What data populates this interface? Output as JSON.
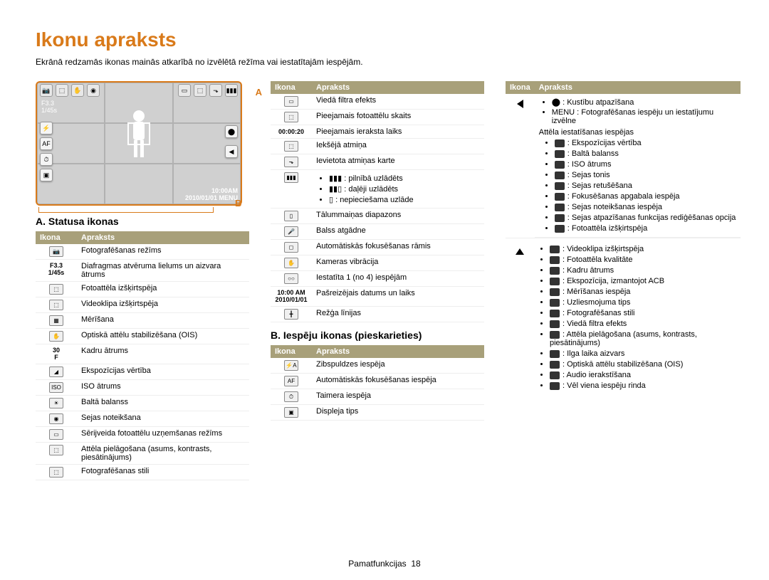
{
  "title": "Ikonu apraksts",
  "subtitle": "Ekrānā redzamās ikonas mainās atkarībā no izvēlētā režīma vai iestatītajām iespējām.",
  "preview": {
    "f_value": "F3.3",
    "shutter": "1/45s",
    "time": "10:00AM",
    "date": "2010/01/01",
    "menu": "MENU",
    "labelA": "A",
    "labelB": "B"
  },
  "sectionA_title": "A. Statusa ikonas",
  "sectionB_title": "B. Iespēju ikonas (pieskarieties)",
  "headers": {
    "icon": "Ikona",
    "desc": "Apraksts"
  },
  "tableA": [
    {
      "ic": "📷",
      "desc": "Fotografēšanas režīms"
    },
    {
      "ic": "F3.3\n1/45s",
      "txt": true,
      "desc": "Diafragmas atvēruma lielums un aizvara ātrums"
    },
    {
      "ic": "⬚",
      "desc": "Fotoattēla izšķirtspēja"
    },
    {
      "ic": "⬚",
      "desc": "Videoklipa izšķirtspēja"
    },
    {
      "ic": "▦",
      "desc": "Mērīšana"
    },
    {
      "ic": "✋",
      "desc": "Optiskā attēlu stabilizēšana (OIS)"
    },
    {
      "ic": "30\nF",
      "txt": true,
      "desc": "Kadru ātrums"
    },
    {
      "ic": "◢",
      "desc": "Ekspozīcijas vērtība"
    },
    {
      "ic": "ISO",
      "desc": "ISO ātrums"
    },
    {
      "ic": "☀",
      "desc": "Baltā balanss"
    },
    {
      "ic": "◉",
      "desc": "Sejas noteikšana"
    },
    {
      "ic": "▭",
      "desc": "Sērijveida fotoattēlu uzņemšanas režīms"
    },
    {
      "ic": "⬚",
      "desc": "Attēla pielāgošana (asums, kontrasts, piesātinājums)"
    },
    {
      "ic": "⬚",
      "desc": "Fotografēšanas stili"
    }
  ],
  "tableA2": [
    {
      "ic": "▭",
      "desc": "Viedā filtra efekts"
    },
    {
      "ic": "⬚",
      "desc": "Pieejamais fotoattēlu skaits"
    },
    {
      "ic": "00:00:20",
      "txt": true,
      "desc": "Pieejamais ieraksta laiks"
    },
    {
      "ic": "⬚",
      "desc": "Iekšējā atmiņa"
    },
    {
      "ic": "⬎",
      "desc": "Ievietota atmiņas karte"
    },
    {
      "ic": "▮▮▮",
      "desc": "",
      "battery": true
    },
    {
      "ic": "▯",
      "desc": "Tālummaiņas diapazons"
    },
    {
      "ic": "🎤",
      "desc": "Balss atgādne"
    },
    {
      "ic": "◻",
      "desc": "Automātiskās fokusēšanas rāmis"
    },
    {
      "ic": "✋",
      "desc": "Kameras vibrācija"
    },
    {
      "ic": "○○",
      "desc": "Iestatīta 1 (no 4) iespējām"
    },
    {
      "ic": "10:00 AM\n2010/01/01",
      "txt": true,
      "desc": "Pašreizējais datums un laiks"
    },
    {
      "ic": "╋",
      "desc": "Režģa līnijas"
    }
  ],
  "battery_items": [
    "▮▮▮ : pilnībā uzlādēts",
    "▮▮▯ : daļēji uzlādēts",
    "▯ : nepieciešama uzlāde"
  ],
  "tableB": [
    {
      "ic": "⚡A",
      "desc": "Zibspuldzes iespēja"
    },
    {
      "ic": "AF",
      "desc": "Automātiskās fokusēšanas iespēja"
    },
    {
      "ic": "⏱",
      "desc": "Taimera iespēja"
    },
    {
      "ic": "▣",
      "desc": "Displeja tips"
    }
  ],
  "tableB2_part1_header": "",
  "tableB2_part1": [
    "⬤ : Kustību atpazīšana",
    "MENU : Fotografēšanas iespēju un iestatījumu izvēlne"
  ],
  "tableB2_label": "Attēla iestatīšanas iespējas",
  "tableB2_items": [
    "◢ : Ekspozīcijas vērtība",
    "WB : Baltā balanss",
    "ISO : ISO ātrums",
    "◉ : Sejas tonis",
    "✦ : Sejas retušēšana",
    "⊞ : Fokusēšanas apgabala iespēja",
    "◉ : Sejas noteikšanas iespēja",
    "◉ : Sejas atpazīšanas funkcijas rediģēšanas opcija",
    "⬚ : Fotoattēla izšķirtspēja",
    "⬚ : Videoklipa izšķirtspēja",
    "◻ : Fotoattēla kvalitāte",
    "30F : Kadru ātrums",
    "ACB : Ekspozīcija, izmantojot ACB",
    "▦ : Mērīšanas iespēja",
    "◉ : Uzliesmojuma tips",
    "NOR : Fotografēšanas stili",
    "▭ : Viedā filtra efekts",
    "⬚ : Attēla pielāgošana (asums, kontrasts, piesātinājums)",
    "LT : Ilga laika aizvars",
    "✋ : Optiskā attēlu stabilizēšana (OIS)",
    "🔇 : Audio ierakstīšana",
    "◀ ▶ : Vēl viena iespēju rinda"
  ],
  "footer": {
    "label": "Pamatfunkcijas",
    "page": "18"
  }
}
